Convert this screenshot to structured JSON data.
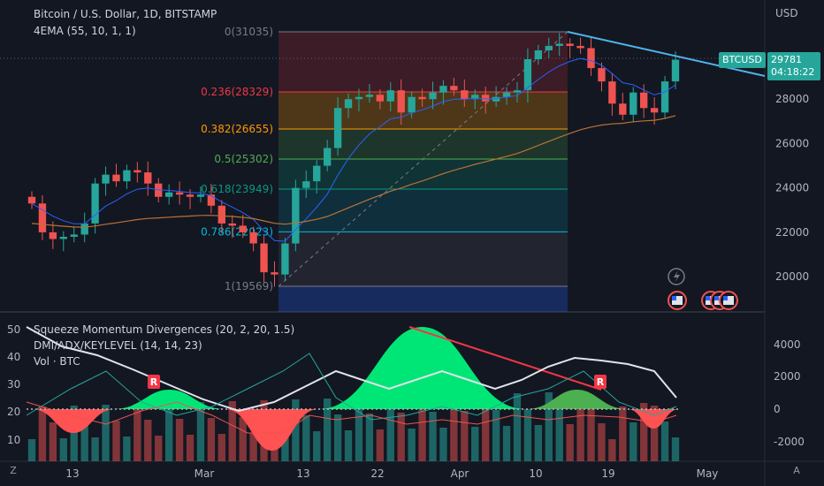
{
  "chart_title": "Bitcoin / U.S. Dollar, 1D, BITSTAMP",
  "indicator_main": "4EMA (55, 10, 1, 1)",
  "indicator_sub": [
    "Squeeze Momentum Divergences (20, 2, 20, 1.5)",
    "DMI/ADX/KEYLEVEL (14, 14, 23)",
    "Vol · BTC"
  ],
  "currency": "USD",
  "price_tag": {
    "symbol": "BTCUSD",
    "price": "29781",
    "countdown": "04:18:22"
  },
  "fib_levels": [
    {
      "label": "0(31035)",
      "value": 31035,
      "color": "#787b86"
    },
    {
      "label": "0.236(28329)",
      "value": 28329,
      "color": "#f23645"
    },
    {
      "label": "0.382(26655)",
      "value": 26655,
      "color": "#ff9800"
    },
    {
      "label": "0.5(25302)",
      "value": 25302,
      "color": "#4caf50"
    },
    {
      "label": "0.618(23949)",
      "value": 23949,
      "color": "#089981"
    },
    {
      "label": "0.786(22023)",
      "value": 22023,
      "color": "#00bcd4"
    },
    {
      "label": "1(19569)",
      "value": 19569,
      "color": "#787b86"
    }
  ],
  "price_axis": [
    "28000",
    "26000",
    "24000",
    "22000",
    "20000"
  ],
  "lower_left_axis": [
    "50",
    "40",
    "30",
    "20",
    "10"
  ],
  "lower_right_axis": [
    "4000",
    "2000",
    "0",
    "-2000"
  ],
  "time_axis": [
    "13",
    "Mar",
    "13",
    "22",
    "Apr",
    "10",
    "19",
    "May"
  ],
  "markers": {
    "reversal": "R"
  },
  "colors": {
    "up": "#26a69a",
    "down": "#ef5350",
    "bg": "#131722",
    "tag": "#26a69a"
  },
  "chart_data": {
    "type": "line",
    "title": "Bitcoin / U.S. Dollar, 1D, BITSTAMP",
    "y_unit": "USD",
    "ylim": [
      18800,
      32600
    ],
    "x_ticks": [
      "13",
      "Mar",
      "13",
      "22",
      "Apr",
      "10",
      "19",
      "May"
    ],
    "candles_close_approx": [
      23300,
      22000,
      21700,
      21800,
      21900,
      22400,
      24200,
      24600,
      24300,
      24800,
      24700,
      24200,
      23600,
      23800,
      23700,
      23600,
      23700,
      23200,
      22400,
      22300,
      22000,
      21500,
      20200,
      20100,
      21500,
      24000,
      24300,
      25000,
      25800,
      27600,
      28000,
      28100,
      28200,
      27900,
      28400,
      27400,
      28100,
      28000,
      28300,
      28600,
      28400,
      28000,
      28200,
      27900,
      28100,
      28300,
      28400,
      29800,
      30200,
      30400,
      30500,
      30400,
      30300,
      29400,
      28800,
      27800,
      27300,
      28300,
      27600,
      27400,
      28800,
      29781
    ],
    "ema_series_approx": [
      20600,
      21200,
      21900,
      22200,
      22000,
      22600,
      25200,
      27200,
      28100,
      29100,
      28200,
      27300
    ]
  }
}
